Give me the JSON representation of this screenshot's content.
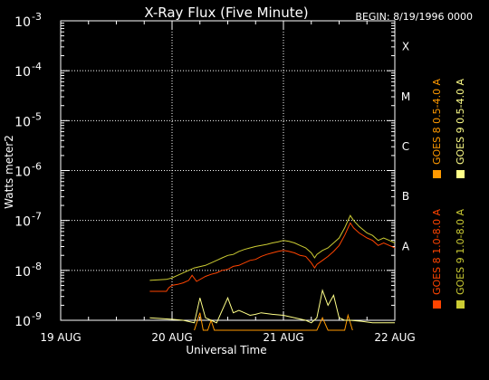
{
  "chart_data": {
    "type": "line",
    "title": "X-Ray Flux (Five Minute)",
    "begin_label": "BEGIN: 8/19/1996 0000",
    "xlabel": "Universal Time",
    "ylabel": "Watts meter2",
    "yscale": "log",
    "ylim_exponent": [
      -9,
      -3
    ],
    "y_ticks": [
      {
        "base": "10",
        "exp": "-9",
        "e": -9
      },
      {
        "base": "10",
        "exp": "-8",
        "e": -8
      },
      {
        "base": "10",
        "exp": "-7",
        "e": -7
      },
      {
        "base": "10",
        "exp": "-6",
        "e": -6
      },
      {
        "base": "10",
        "exp": "-5",
        "e": -5
      },
      {
        "base": "10",
        "exp": "-4",
        "e": -4
      },
      {
        "base": "10",
        "exp": "-3",
        "e": -3
      }
    ],
    "x_ticks": [
      {
        "label": "19 AUG",
        "day": 0
      },
      {
        "label": "20 AUG",
        "day": 1
      },
      {
        "label": "21 AUG",
        "day": 2
      },
      {
        "label": "22 AUG",
        "day": 3
      }
    ],
    "flare_classes": [
      {
        "label": "A",
        "e": -8
      },
      {
        "label": "B",
        "e": -7
      },
      {
        "label": "C",
        "e": -6
      },
      {
        "label": "M",
        "e": -5
      },
      {
        "label": "X",
        "e": -4
      }
    ],
    "legend_position": "right-vertical",
    "series": [
      {
        "name": "GOES 8 1.0-8.0 A",
        "color": "#ff4400",
        "points": [
          [
            0.8,
            -8.42
          ],
          [
            0.95,
            -8.42
          ],
          [
            0.97,
            -8.35
          ],
          [
            1.0,
            -8.3
          ],
          [
            1.05,
            -8.28
          ],
          [
            1.1,
            -8.25
          ],
          [
            1.15,
            -8.2
          ],
          [
            1.18,
            -8.1
          ],
          [
            1.22,
            -8.22
          ],
          [
            1.3,
            -8.12
          ],
          [
            1.35,
            -8.08
          ],
          [
            1.4,
            -8.05
          ],
          [
            1.45,
            -8.0
          ],
          [
            1.5,
            -7.98
          ],
          [
            1.55,
            -7.92
          ],
          [
            1.6,
            -7.9
          ],
          [
            1.65,
            -7.85
          ],
          [
            1.7,
            -7.8
          ],
          [
            1.75,
            -7.78
          ],
          [
            1.8,
            -7.72
          ],
          [
            1.85,
            -7.68
          ],
          [
            1.9,
            -7.65
          ],
          [
            1.95,
            -7.62
          ],
          [
            2.0,
            -7.6
          ],
          [
            2.05,
            -7.62
          ],
          [
            2.1,
            -7.65
          ],
          [
            2.15,
            -7.7
          ],
          [
            2.2,
            -7.72
          ],
          [
            2.25,
            -7.85
          ],
          [
            2.28,
            -7.95
          ],
          [
            2.3,
            -7.88
          ],
          [
            2.35,
            -7.8
          ],
          [
            2.4,
            -7.72
          ],
          [
            2.45,
            -7.62
          ],
          [
            2.5,
            -7.5
          ],
          [
            2.55,
            -7.3
          ],
          [
            2.6,
            -7.05
          ],
          [
            2.63,
            -7.15
          ],
          [
            2.68,
            -7.25
          ],
          [
            2.75,
            -7.35
          ],
          [
            2.8,
            -7.4
          ],
          [
            2.85,
            -7.5
          ],
          [
            2.9,
            -7.45
          ],
          [
            2.95,
            -7.5
          ],
          [
            3.0,
            -7.55
          ]
        ]
      },
      {
        "name": "GOES 8 0.5-4.0 A",
        "color": "#ff9900",
        "points": [
          [
            1.2,
            -9.2
          ],
          [
            1.25,
            -8.85
          ],
          [
            1.28,
            -9.2
          ],
          [
            1.32,
            -9.2
          ],
          [
            1.35,
            -9.0
          ],
          [
            1.38,
            -9.2
          ],
          [
            2.2,
            -9.2
          ],
          [
            2.3,
            -9.2
          ],
          [
            2.35,
            -8.95
          ],
          [
            2.4,
            -9.2
          ],
          [
            2.55,
            -9.2
          ],
          [
            2.58,
            -8.9
          ],
          [
            2.62,
            -9.2
          ]
        ]
      },
      {
        "name": "GOES 9 0.5-4.0 A",
        "color": "#ffff88",
        "points": [
          [
            0.8,
            -8.95
          ],
          [
            1.0,
            -8.98
          ],
          [
            1.1,
            -9.0
          ],
          [
            1.2,
            -9.05
          ],
          [
            1.25,
            -8.55
          ],
          [
            1.3,
            -8.95
          ],
          [
            1.35,
            -9.0
          ],
          [
            1.4,
            -9.05
          ],
          [
            1.5,
            -8.55
          ],
          [
            1.55,
            -8.85
          ],
          [
            1.6,
            -8.8
          ],
          [
            1.65,
            -8.85
          ],
          [
            1.7,
            -8.9
          ],
          [
            1.75,
            -8.88
          ],
          [
            1.8,
            -8.85
          ],
          [
            1.9,
            -8.88
          ],
          [
            2.0,
            -8.9
          ],
          [
            2.1,
            -8.95
          ],
          [
            2.2,
            -9.0
          ],
          [
            2.25,
            -9.05
          ],
          [
            2.3,
            -8.95
          ],
          [
            2.35,
            -8.4
          ],
          [
            2.4,
            -8.7
          ],
          [
            2.45,
            -8.5
          ],
          [
            2.5,
            -8.95
          ],
          [
            2.55,
            -9.0
          ],
          [
            2.6,
            -9.0
          ],
          [
            2.7,
            -9.02
          ],
          [
            2.8,
            -9.05
          ],
          [
            2.9,
            -9.05
          ],
          [
            3.0,
            -9.05
          ]
        ]
      },
      {
        "name": "GOES 9 1.0-8.0 A",
        "color": "#cccc33",
        "points": [
          [
            0.8,
            -8.2
          ],
          [
            0.95,
            -8.18
          ],
          [
            1.0,
            -8.15
          ],
          [
            1.05,
            -8.1
          ],
          [
            1.1,
            -8.05
          ],
          [
            1.15,
            -8.0
          ],
          [
            1.2,
            -7.95
          ],
          [
            1.3,
            -7.9
          ],
          [
            1.35,
            -7.85
          ],
          [
            1.4,
            -7.8
          ],
          [
            1.45,
            -7.75
          ],
          [
            1.5,
            -7.7
          ],
          [
            1.55,
            -7.68
          ],
          [
            1.6,
            -7.62
          ],
          [
            1.65,
            -7.58
          ],
          [
            1.7,
            -7.55
          ],
          [
            1.75,
            -7.52
          ],
          [
            1.8,
            -7.5
          ],
          [
            1.85,
            -7.48
          ],
          [
            1.9,
            -7.45
          ],
          [
            1.95,
            -7.43
          ],
          [
            2.0,
            -7.4
          ],
          [
            2.05,
            -7.42
          ],
          [
            2.1,
            -7.45
          ],
          [
            2.15,
            -7.5
          ],
          [
            2.2,
            -7.55
          ],
          [
            2.25,
            -7.65
          ],
          [
            2.28,
            -7.75
          ],
          [
            2.3,
            -7.68
          ],
          [
            2.35,
            -7.6
          ],
          [
            2.4,
            -7.55
          ],
          [
            2.45,
            -7.45
          ],
          [
            2.5,
            -7.35
          ],
          [
            2.55,
            -7.15
          ],
          [
            2.6,
            -6.9
          ],
          [
            2.63,
            -7.0
          ],
          [
            2.68,
            -7.12
          ],
          [
            2.75,
            -7.25
          ],
          [
            2.8,
            -7.3
          ],
          [
            2.85,
            -7.4
          ],
          [
            2.9,
            -7.35
          ],
          [
            2.95,
            -7.4
          ],
          [
            3.0,
            -7.45
          ]
        ]
      }
    ]
  }
}
